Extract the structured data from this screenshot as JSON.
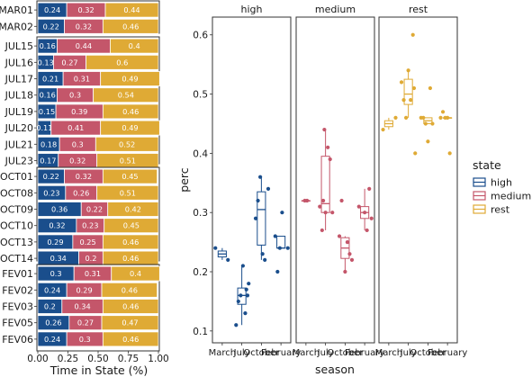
{
  "chart_data": [
    {
      "type": "bar",
      "orientation": "horizontal",
      "stacked": true,
      "xlabel": "Time in State (%)",
      "ylabel": "",
      "xlim": [
        0,
        1
      ],
      "xticks": [
        "0.00",
        "0.25",
        "0.50",
        "0.75",
        "1.00"
      ],
      "series_names": [
        "high",
        "medium",
        "rest"
      ],
      "colors": {
        "high": "#1a4e8c",
        "medium": "#c4566a",
        "rest": "#dfaa35"
      },
      "groups": [
        {
          "rows": [
            {
              "label": "MAR01",
              "high": 0.24,
              "medium": 0.32,
              "rest": 0.44
            },
            {
              "label": "MAR02",
              "high": 0.22,
              "medium": 0.32,
              "rest": 0.46
            }
          ]
        },
        {
          "rows": [
            {
              "label": "JUL15",
              "high": 0.16,
              "medium": 0.44,
              "rest": 0.4
            },
            {
              "label": "JUL16",
              "high": 0.13,
              "medium": 0.27,
              "rest": 0.6
            },
            {
              "label": "JUL17",
              "high": 0.21,
              "medium": 0.31,
              "rest": 0.49
            },
            {
              "label": "JUL18",
              "high": 0.16,
              "medium": 0.3,
              "rest": 0.54
            },
            {
              "label": "JUL19",
              "high": 0.15,
              "medium": 0.39,
              "rest": 0.46
            },
            {
              "label": "JUL20",
              "high": 0.11,
              "medium": 0.41,
              "rest": 0.49
            },
            {
              "label": "JUL21",
              "high": 0.18,
              "medium": 0.3,
              "rest": 0.52
            },
            {
              "label": "JUL23",
              "high": 0.17,
              "medium": 0.32,
              "rest": 0.51
            }
          ]
        },
        {
          "rows": [
            {
              "label": "OCT01",
              "high": 0.22,
              "medium": 0.32,
              "rest": 0.45
            },
            {
              "label": "OCT08",
              "high": 0.23,
              "medium": 0.26,
              "rest": 0.51
            },
            {
              "label": "OCT09",
              "high": 0.36,
              "medium": 0.22,
              "rest": 0.42
            },
            {
              "label": "OCT10",
              "high": 0.32,
              "medium": 0.23,
              "rest": 0.45
            },
            {
              "label": "OCT13",
              "high": 0.29,
              "medium": 0.25,
              "rest": 0.46
            },
            {
              "label": "OCT14",
              "high": 0.34,
              "medium": 0.2,
              "rest": 0.46
            }
          ]
        },
        {
          "rows": [
            {
              "label": "FEV01",
              "high": 0.3,
              "medium": 0.31,
              "rest": 0.4
            },
            {
              "label": "FEV02",
              "high": 0.24,
              "medium": 0.29,
              "rest": 0.46
            },
            {
              "label": "FEV03",
              "high": 0.2,
              "medium": 0.34,
              "rest": 0.46
            },
            {
              "label": "FEV05",
              "high": 0.26,
              "medium": 0.27,
              "rest": 0.47
            },
            {
              "label": "FEV06",
              "high": 0.24,
              "medium": 0.3,
              "rest": 0.46
            }
          ]
        }
      ]
    },
    {
      "type": "boxplot",
      "xlabel": "season",
      "ylabel": "perc",
      "ylim": [
        0.08,
        0.63
      ],
      "yticks": [
        "0.1",
        "0.2",
        "0.3",
        "0.4",
        "0.5",
        "0.6"
      ],
      "categories": [
        "March",
        "July",
        "October",
        "February"
      ],
      "facets": [
        "high",
        "medium",
        "rest"
      ],
      "legend": {
        "title": "state",
        "entries": [
          "high",
          "medium",
          "rest"
        ],
        "placement": "right"
      },
      "data": {
        "high": {
          "March": [
            0.24,
            0.22
          ],
          "July": [
            0.16,
            0.13,
            0.21,
            0.16,
            0.15,
            0.11,
            0.18,
            0.17
          ],
          "October": [
            0.22,
            0.23,
            0.36,
            0.32,
            0.29,
            0.34
          ],
          "February": [
            0.3,
            0.24,
            0.2,
            0.26,
            0.24
          ]
        },
        "medium": {
          "March": [
            0.32,
            0.32
          ],
          "July": [
            0.44,
            0.27,
            0.31,
            0.3,
            0.39,
            0.41,
            0.3,
            0.32
          ],
          "October": [
            0.32,
            0.26,
            0.22,
            0.23,
            0.25,
            0.2
          ],
          "February": [
            0.31,
            0.29,
            0.34,
            0.27,
            0.3
          ]
        },
        "rest": {
          "March": [
            0.44,
            0.46
          ],
          "July": [
            0.4,
            0.6,
            0.49,
            0.54,
            0.46,
            0.49,
            0.52,
            0.51
          ],
          "October": [
            0.45,
            0.51,
            0.42,
            0.45,
            0.46,
            0.46
          ],
          "February": [
            0.4,
            0.46,
            0.46,
            0.47,
            0.46
          ]
        }
      }
    }
  ]
}
